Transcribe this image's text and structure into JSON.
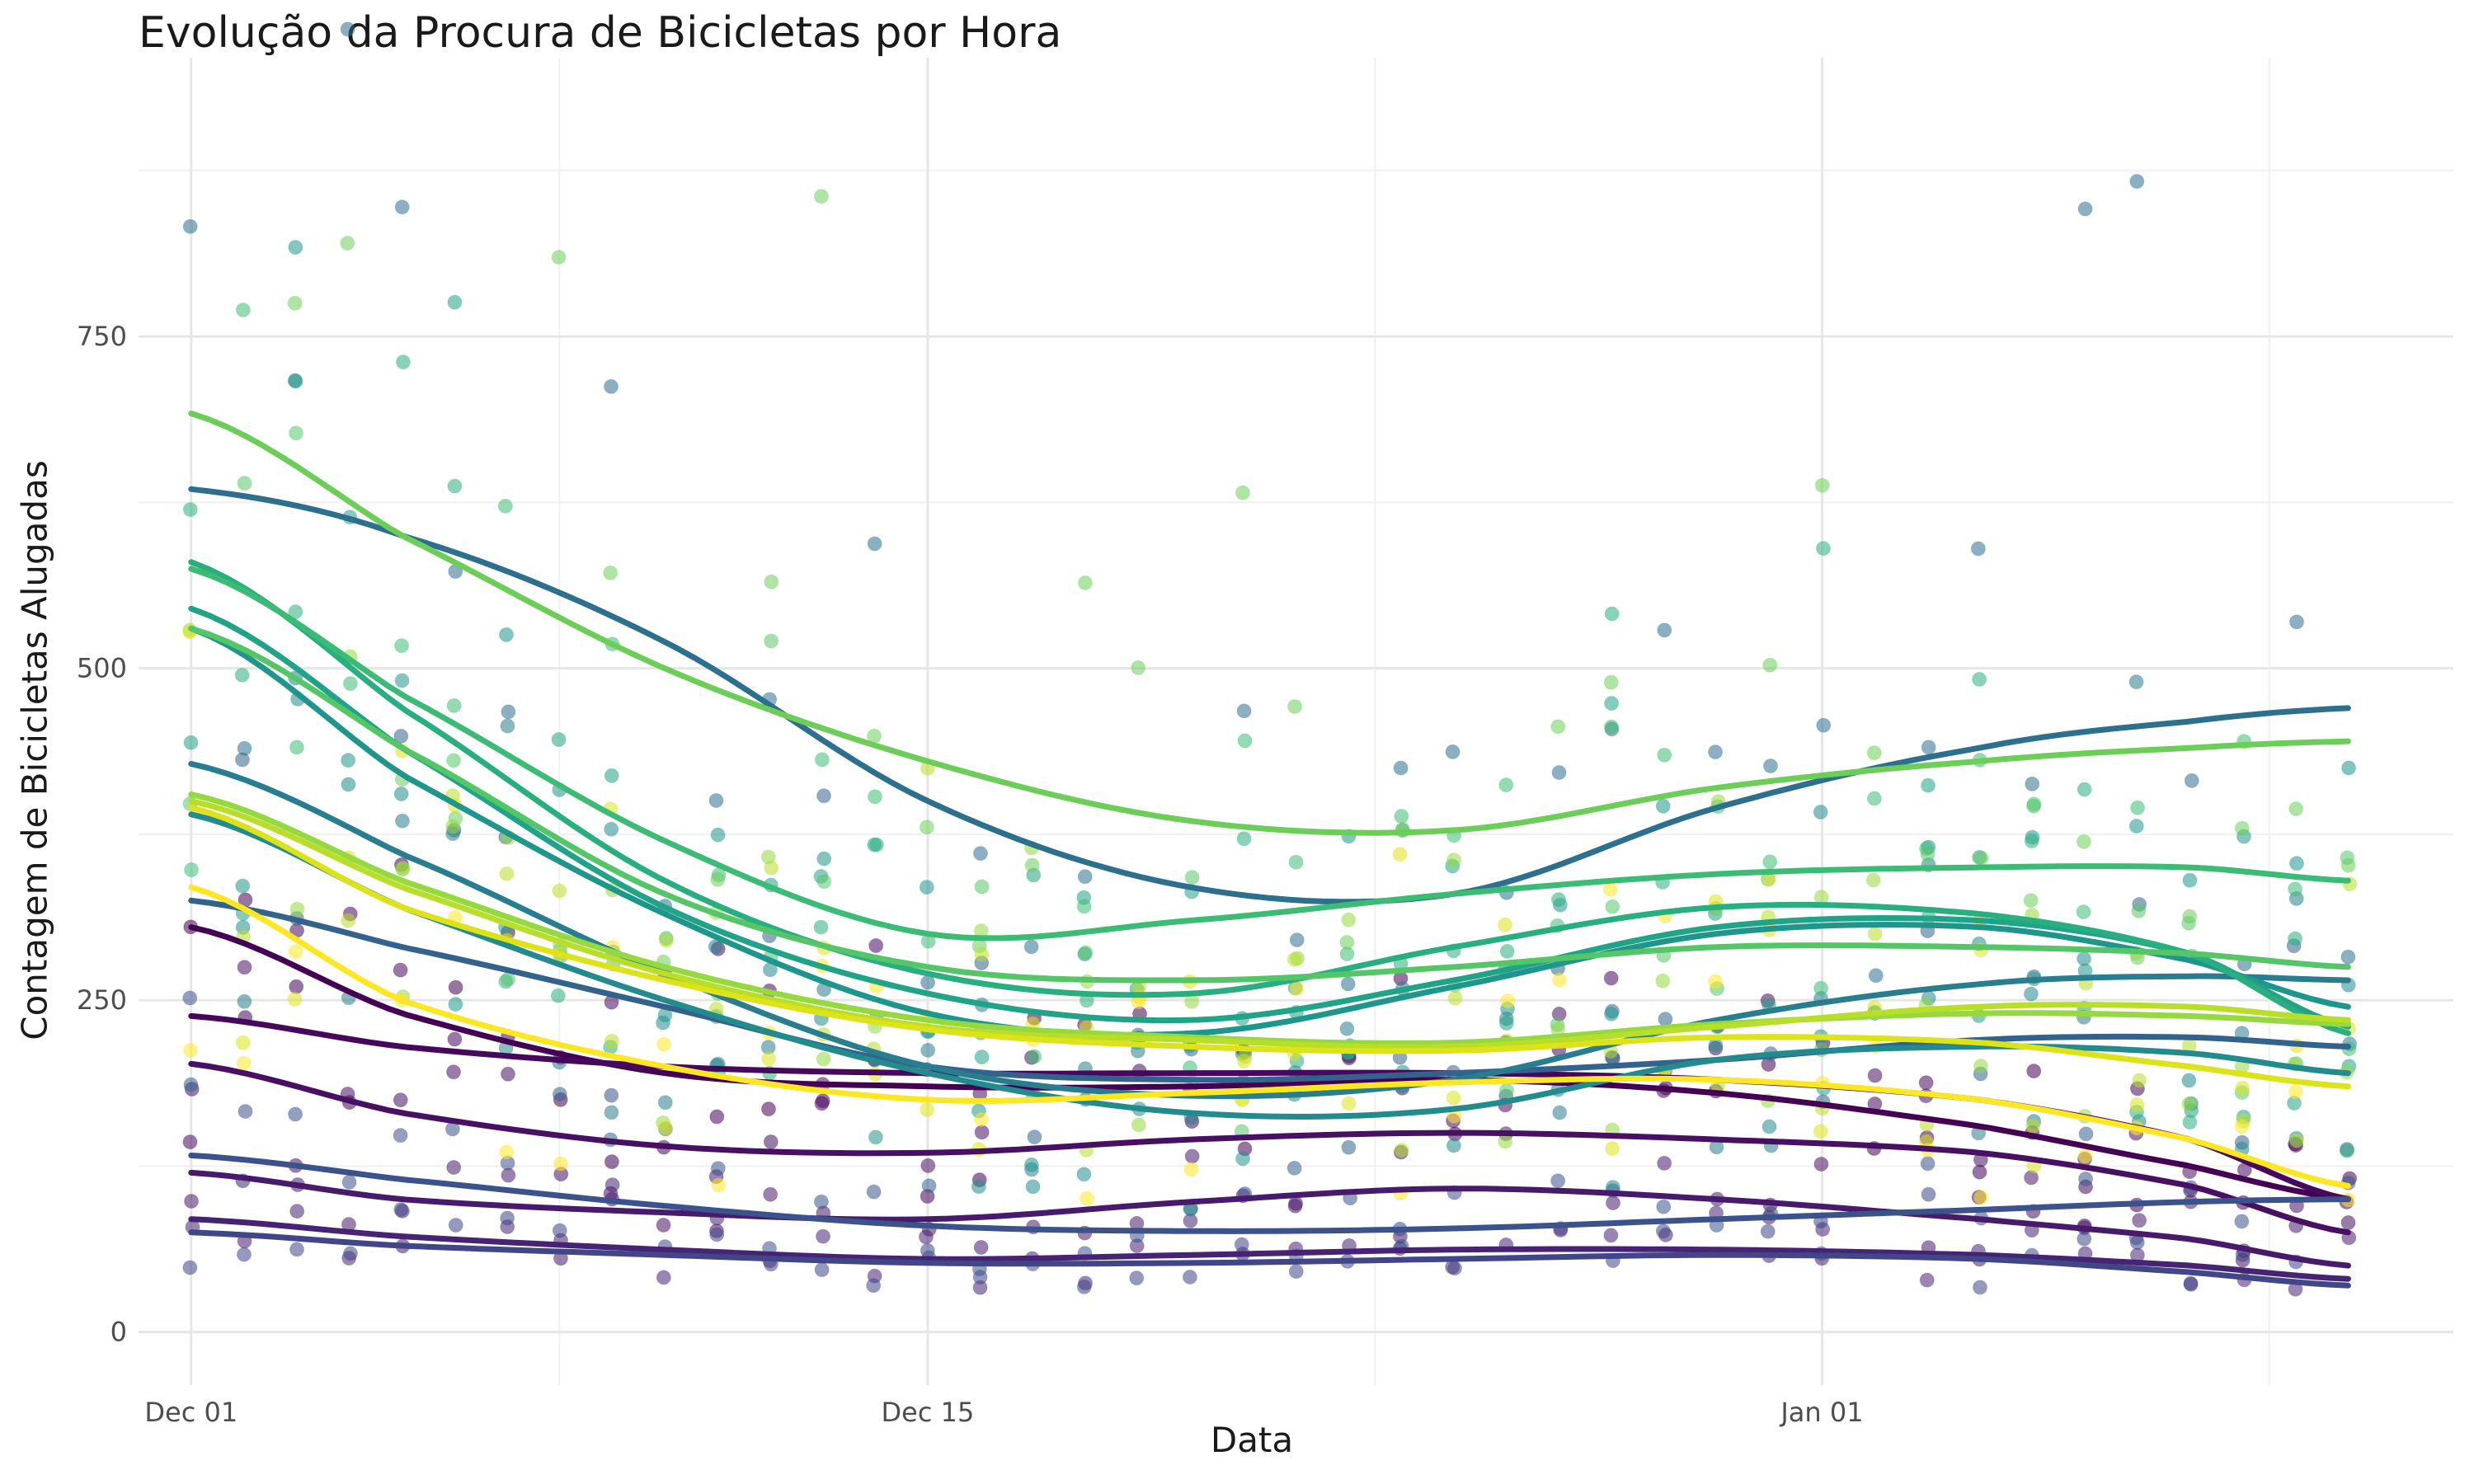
{
  "chart_data": {
    "type": "scatter",
    "title": "Evolução da Procura de Bicicletas por Hora",
    "xlabel": "Data",
    "ylabel": "Contagem de Bicicletas Alugadas",
    "x_tick_labels": [
      "Dec 01",
      "Dec 15",
      "Jan 01"
    ],
    "x_tick_dates": [
      "2011-12-01",
      "2011-12-15",
      "2012-01-01"
    ],
    "y_ticks": [
      0,
      250,
      500,
      750
    ],
    "xlim": [
      "2011-11-30",
      "2012-01-13"
    ],
    "ylim": [
      -40,
      960
    ],
    "grid": true,
    "legend": "none",
    "point_style": {
      "alpha": 0.55,
      "note": "scatter points colored by hour with viridis palette"
    },
    "smooth_series": [
      {
        "color": "#440154",
        "x": [
          "2011-12-01",
          "2011-12-05",
          "2011-12-10",
          "2011-12-15",
          "2011-12-20",
          "2011-12-25",
          "2011-12-30",
          "2012-01-04",
          "2012-01-08",
          "2012-01-11"
        ],
        "y": [
          305,
          240,
          195,
          185,
          185,
          190,
          180,
          155,
          125,
          100
        ]
      },
      {
        "color": "#46085C",
        "x": [
          "2011-12-01",
          "2011-12-05",
          "2011-12-10",
          "2011-12-15",
          "2011-12-20",
          "2011-12-25",
          "2011-12-30",
          "2012-01-04",
          "2012-01-08",
          "2012-01-11"
        ],
        "y": [
          238,
          215,
          200,
          195,
          195,
          195,
          190,
          175,
          145,
          100
        ]
      },
      {
        "color": "#471063",
        "x": [
          "2011-12-01",
          "2011-12-05",
          "2011-12-10",
          "2011-12-15",
          "2011-12-20",
          "2011-12-25",
          "2011-12-30",
          "2012-01-04",
          "2012-01-08",
          "2012-01-11"
        ],
        "y": [
          202,
          165,
          140,
          135,
          145,
          150,
          145,
          135,
          110,
          75
        ]
      },
      {
        "color": "#481A6C",
        "x": [
          "2011-12-01",
          "2011-12-05",
          "2011-12-10",
          "2011-12-15",
          "2011-12-20",
          "2011-12-25",
          "2011-12-30",
          "2012-01-04",
          "2012-01-08",
          "2012-01-11"
        ],
        "y": [
          120,
          100,
          90,
          85,
          98,
          108,
          100,
          85,
          70,
          50
        ]
      },
      {
        "color": "#472374",
        "x": [
          "2011-12-01",
          "2011-12-05",
          "2011-12-10",
          "2011-12-15",
          "2011-12-20",
          "2011-12-25",
          "2011-12-30",
          "2012-01-04",
          "2012-01-08",
          "2012-01-11"
        ],
        "y": [
          85,
          72,
          62,
          55,
          58,
          62,
          62,
          58,
          50,
          40
        ]
      },
      {
        "color": "#404688",
        "x": [
          "2011-12-01",
          "2011-12-05",
          "2011-12-10",
          "2011-12-15",
          "2011-12-20",
          "2011-12-25",
          "2011-12-30",
          "2012-01-04",
          "2012-01-08",
          "2012-01-11"
        ],
        "y": [
          75,
          65,
          58,
          52,
          52,
          55,
          58,
          55,
          45,
          35
        ]
      },
      {
        "color": "#3B528B",
        "x": [
          "2011-12-01",
          "2011-12-05",
          "2011-12-10",
          "2011-12-15",
          "2011-12-20",
          "2011-12-25",
          "2011-12-30",
          "2012-01-04",
          "2012-01-08",
          "2012-01-11"
        ],
        "y": [
          133,
          115,
          95,
          80,
          76,
          78,
          85,
          92,
          98,
          100
        ]
      },
      {
        "color": "#33638D",
        "x": [
          "2011-12-01",
          "2011-12-05",
          "2011-12-10",
          "2011-12-15",
          "2011-12-20",
          "2011-12-25",
          "2011-12-30",
          "2012-01-04",
          "2012-01-08",
          "2012-01-11"
        ],
        "y": [
          325,
          290,
          245,
          200,
          190,
          195,
          205,
          220,
          222,
          215
        ]
      },
      {
        "color": "#2D708E",
        "x": [
          "2011-12-01",
          "2011-12-05",
          "2011-12-10",
          "2011-12-15",
          "2011-12-20",
          "2011-12-25",
          "2011-12-30",
          "2012-01-04",
          "2012-01-08",
          "2012-01-11"
        ],
        "y": [
          635,
          600,
          520,
          400,
          335,
          330,
          395,
          440,
          460,
          470
        ]
      },
      {
        "color": "#287D8E",
        "x": [
          "2011-12-01",
          "2011-12-05",
          "2011-12-10",
          "2011-12-15",
          "2011-12-20",
          "2011-12-25",
          "2011-12-30",
          "2012-01-04",
          "2012-01-08",
          "2012-01-11"
        ],
        "y": [
          428,
          360,
          270,
          200,
          178,
          190,
          235,
          262,
          268,
          265
        ]
      },
      {
        "color": "#238A8D",
        "x": [
          "2011-12-01",
          "2011-12-05",
          "2011-12-10",
          "2011-12-15",
          "2011-12-20",
          "2011-12-25",
          "2011-12-30",
          "2012-01-04",
          "2012-01-08",
          "2012-01-11"
        ],
        "y": [
          390,
          320,
          250,
          195,
          165,
          168,
          205,
          215,
          210,
          195
        ]
      },
      {
        "color": "#1F968B",
        "x": [
          "2011-12-01",
          "2011-12-05",
          "2011-12-10",
          "2011-12-15",
          "2011-12-20",
          "2011-12-25",
          "2011-12-30",
          "2012-01-04",
          "2012-01-08",
          "2012-01-11"
        ],
        "y": [
          530,
          420,
          315,
          240,
          225,
          260,
          300,
          305,
          280,
          245
        ]
      },
      {
        "color": "#20A387",
        "x": [
          "2011-12-01",
          "2011-12-05",
          "2011-12-10",
          "2011-12-15",
          "2011-12-20",
          "2011-12-25",
          "2011-12-30",
          "2012-01-04",
          "2012-01-08",
          "2012-01-11"
        ],
        "y": [
          545,
          440,
          320,
          255,
          235,
          265,
          305,
          310,
          285,
          230
        ]
      },
      {
        "color": "#29AF7F",
        "x": [
          "2011-12-01",
          "2011-12-05",
          "2011-12-10",
          "2011-12-15",
          "2011-12-20",
          "2011-12-25",
          "2011-12-30",
          "2012-01-04",
          "2012-01-08",
          "2012-01-11"
        ],
        "y": [
          580,
          470,
          340,
          270,
          255,
          290,
          320,
          315,
          285,
          225
        ]
      },
      {
        "color": "#3CBB75",
        "x": [
          "2011-12-01",
          "2011-12-05",
          "2011-12-10",
          "2011-12-15",
          "2011-12-20",
          "2011-12-25",
          "2011-12-30",
          "2012-01-04",
          "2012-01-08",
          "2012-01-11"
        ],
        "y": [
          575,
          480,
          370,
          300,
          310,
          330,
          345,
          350,
          350,
          340
        ]
      },
      {
        "color": "#55C667",
        "x": [
          "2011-12-01",
          "2011-12-05",
          "2011-12-10",
          "2011-12-15",
          "2011-12-20",
          "2011-12-25",
          "2011-12-30",
          "2012-01-04",
          "2012-01-08",
          "2012-01-11"
        ],
        "y": [
          530,
          440,
          330,
          275,
          265,
          275,
          290,
          290,
          285,
          275
        ]
      },
      {
        "color": "#6CCE59",
        "x": [
          "2011-12-01",
          "2011-12-05",
          "2011-12-10",
          "2011-12-15",
          "2011-12-20",
          "2011-12-25",
          "2011-12-30",
          "2012-01-04",
          "2012-01-08",
          "2012-01-11"
        ],
        "y": [
          692,
          600,
          500,
          430,
          385,
          378,
          410,
          430,
          440,
          445
        ]
      },
      {
        "color": "#95D840",
        "x": [
          "2011-12-01",
          "2011-12-05",
          "2011-12-10",
          "2011-12-15",
          "2011-12-20",
          "2011-12-25",
          "2011-12-30",
          "2012-01-04",
          "2012-01-08",
          "2012-01-11"
        ],
        "y": [
          405,
          340,
          275,
          235,
          222,
          218,
          232,
          240,
          238,
          232
        ]
      },
      {
        "color": "#B8DE29",
        "x": [
          "2011-12-01",
          "2011-12-05",
          "2011-12-10",
          "2011-12-15",
          "2011-12-20",
          "2011-12-25",
          "2011-12-30",
          "2012-01-04",
          "2012-01-08",
          "2012-01-11"
        ],
        "y": [
          400,
          335,
          270,
          230,
          220,
          215,
          230,
          245,
          245,
          235
        ]
      },
      {
        "color": "#DCE319",
        "x": [
          "2011-12-01",
          "2011-12-05",
          "2011-12-10",
          "2011-12-15",
          "2011-12-20",
          "2011-12-25",
          "2011-12-30",
          "2012-01-04",
          "2012-01-08",
          "2012-01-11"
        ],
        "y": [
          395,
          320,
          265,
          228,
          215,
          212,
          222,
          218,
          200,
          185
        ]
      },
      {
        "color": "#FDE725",
        "x": [
          "2011-12-01",
          "2011-12-05",
          "2011-12-10",
          "2011-12-15",
          "2011-12-20",
          "2011-12-25",
          "2011-12-30",
          "2012-01-04",
          "2012-01-08",
          "2012-01-11"
        ],
        "y": [
          335,
          250,
          200,
          175,
          180,
          188,
          190,
          175,
          145,
          110
        ]
      }
    ]
  }
}
